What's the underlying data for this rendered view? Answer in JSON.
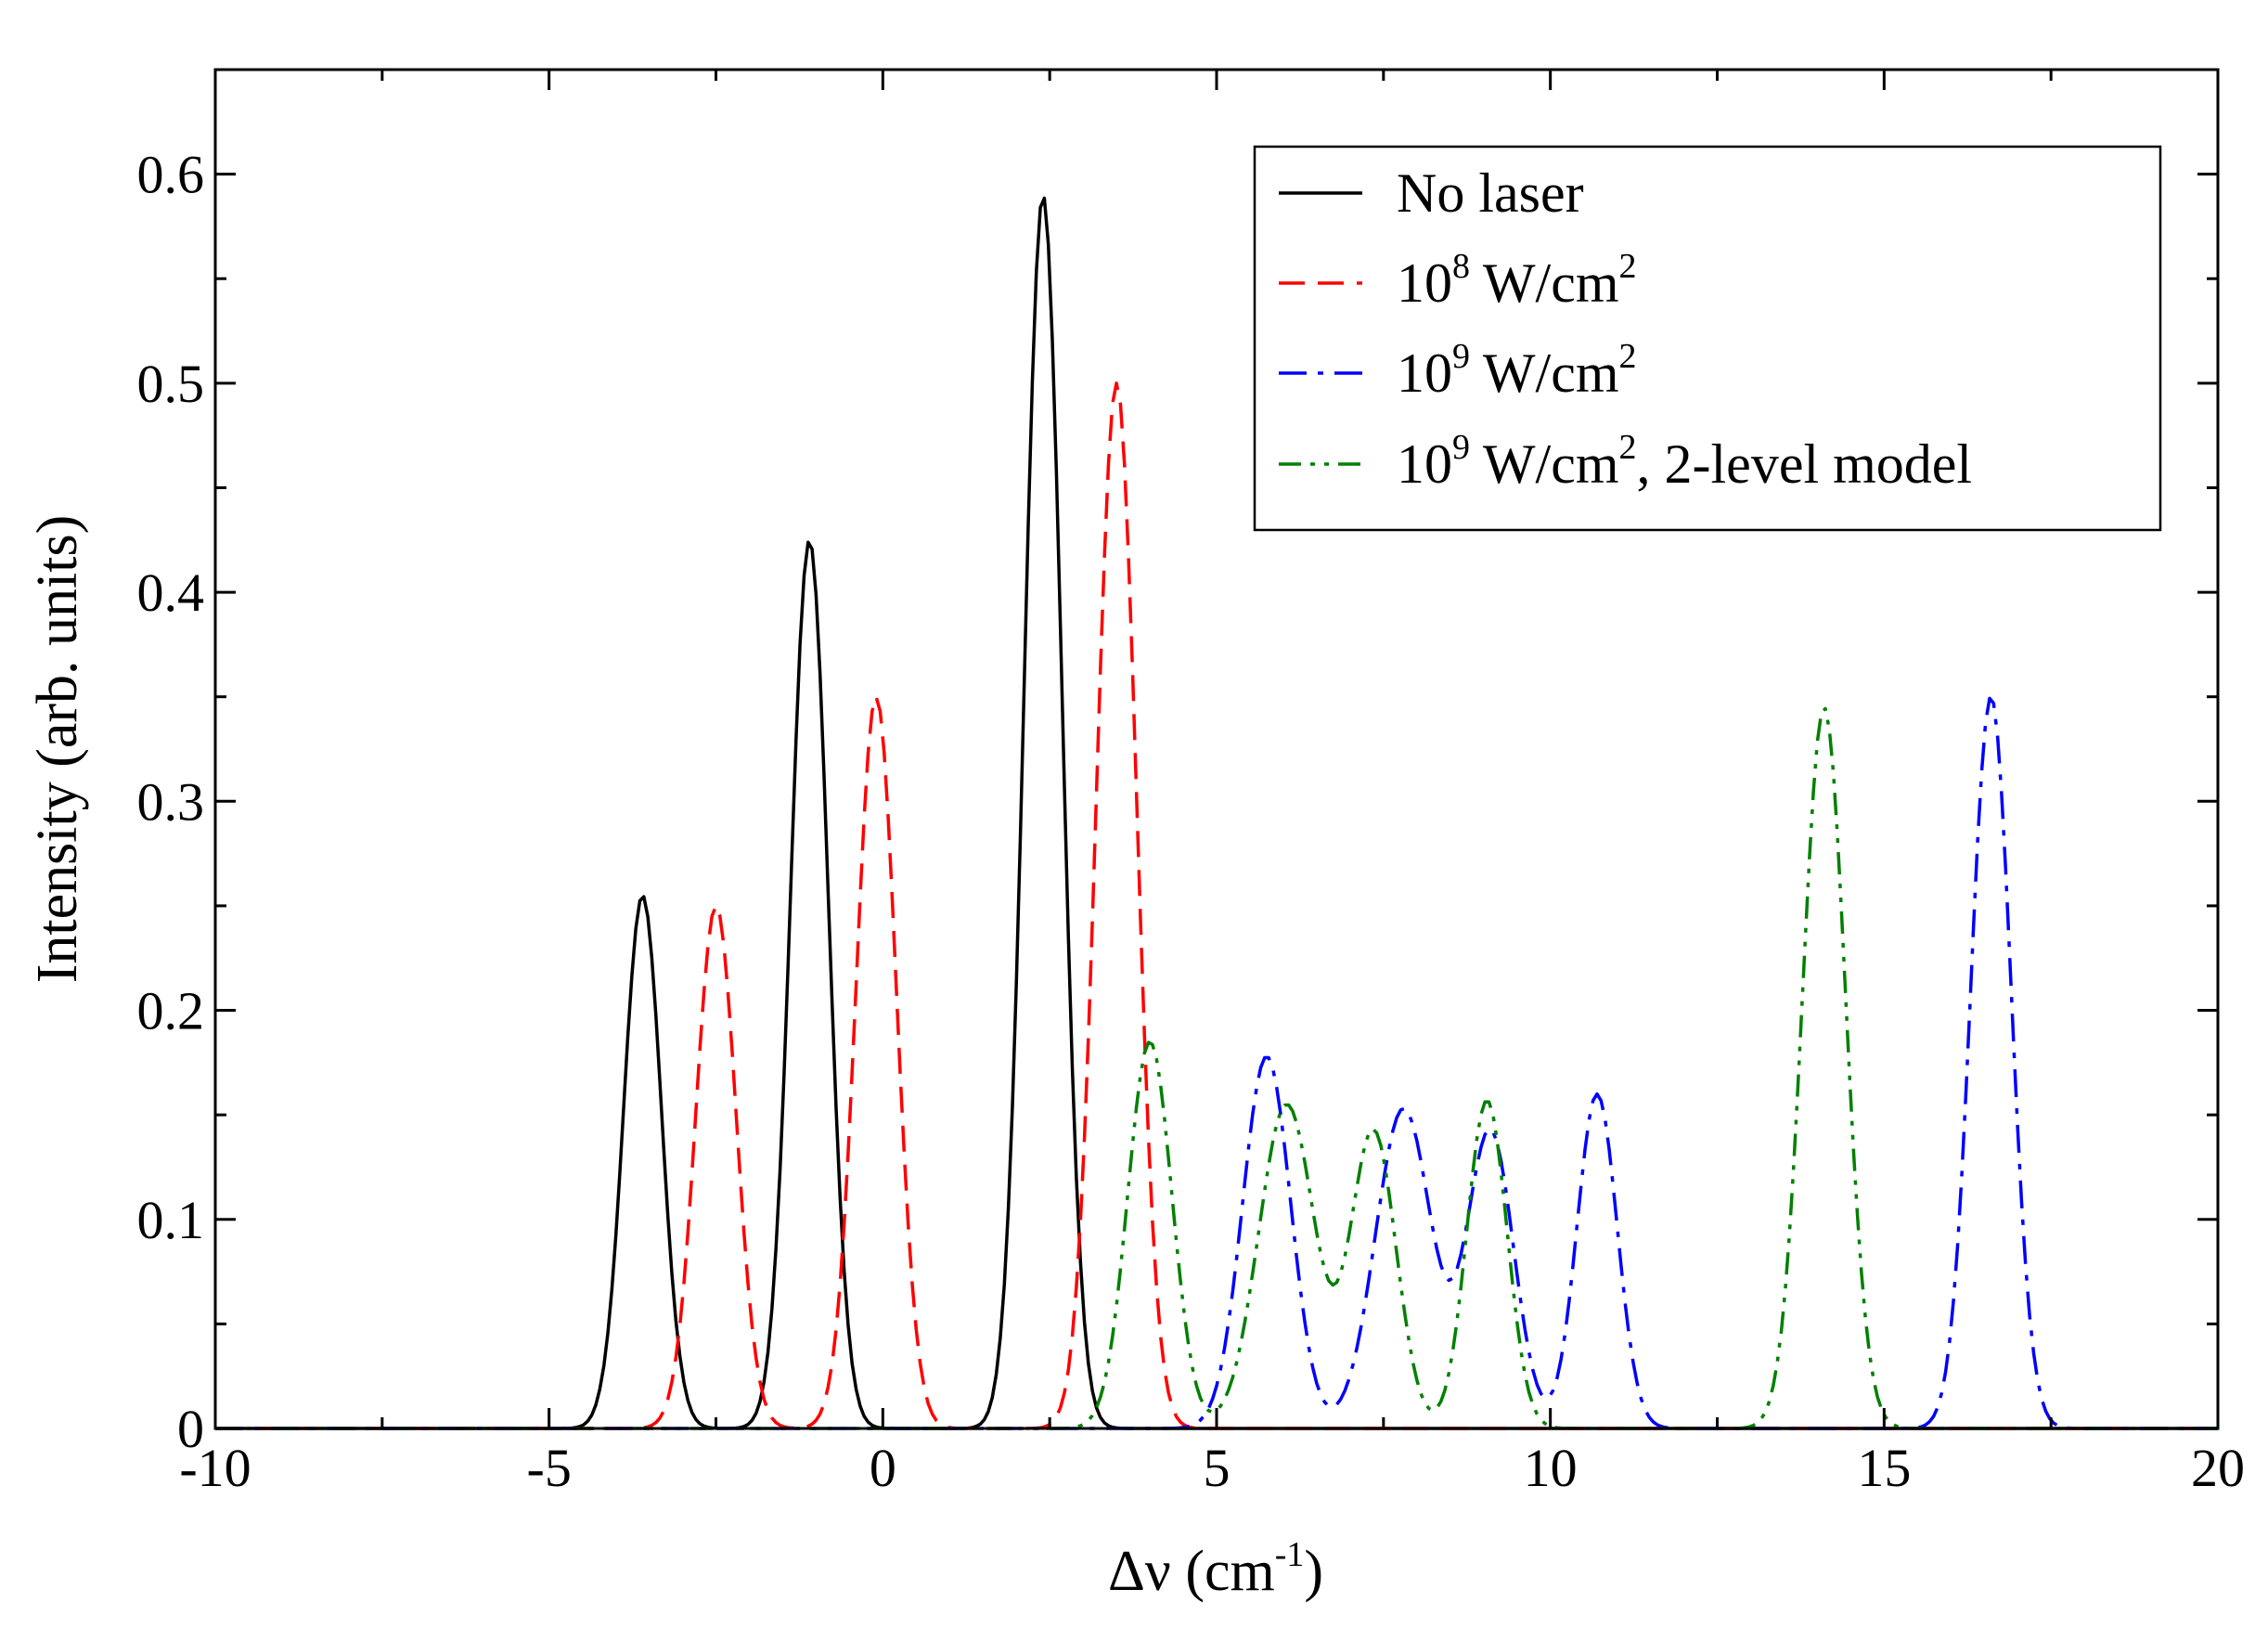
{
  "chart_data": {
    "type": "line",
    "title": "",
    "xlabel": {
      "main": "Δν (cm",
      "sup": "-1",
      "tail": ")"
    },
    "ylabel": "Intensity (arb. units)",
    "xlim": [
      -10,
      20
    ],
    "ylim": [
      0,
      0.65
    ],
    "xticks": [
      -10,
      -5,
      0,
      5,
      10,
      15,
      20
    ],
    "yticks": [
      0,
      0.1,
      0.2,
      0.3,
      0.4,
      0.5,
      0.6
    ],
    "xtick_labels": [
      "-10",
      "-5",
      "0",
      "5",
      "10",
      "15",
      "20"
    ],
    "ytick_labels": [
      "0",
      "0.1",
      "0.2",
      "0.3",
      "0.4",
      "0.5",
      "0.6"
    ],
    "grid": false,
    "legend_position": "top-right",
    "series": [
      {
        "name": "No laser",
        "legend": {
          "base": "No laser",
          "sup": "",
          "tail": ""
        },
        "color": "#000000",
        "style": "solid",
        "peaks": [
          {
            "center": -3.6,
            "height": 0.255,
            "width": 0.28
          },
          {
            "center": -1.1,
            "height": 0.425,
            "width": 0.28
          },
          {
            "center": 2.4,
            "height": 0.59,
            "width": 0.28
          }
        ]
      },
      {
        "name": "10^8 W/cm^2",
        "legend": {
          "base": "10",
          "sup": "8",
          "tail": " W/cm",
          "sup2": "2",
          "tail2": ""
        },
        "color": "#ff0000",
        "style": "dashed",
        "peaks": [
          {
            "center": -2.5,
            "height": 0.25,
            "width": 0.3
          },
          {
            "center": -0.1,
            "height": 0.35,
            "width": 0.3
          },
          {
            "center": 3.5,
            "height": 0.5,
            "width": 0.3
          }
        ]
      },
      {
        "name": "10^9 W/cm^2",
        "legend": {
          "base": "10",
          "sup": "9",
          "tail": " W/cm",
          "sup2": "2",
          "tail2": ""
        },
        "color": "#0000ff",
        "style": "dashdot",
        "peaks": [
          {
            "center": 5.75,
            "height": 0.178,
            "width": 0.36
          },
          {
            "center": 7.8,
            "height": 0.153,
            "width": 0.42
          },
          {
            "center": 9.1,
            "height": 0.142,
            "width": 0.35
          },
          {
            "center": 10.7,
            "height": 0.16,
            "width": 0.3
          },
          {
            "center": 16.6,
            "height": 0.35,
            "width": 0.3
          }
        ]
      },
      {
        "name": "10^9 W/cm^2, 2-level model",
        "legend": {
          "base": "10",
          "sup": "9",
          "tail": " W/cm",
          "sup2": "2",
          "tail2": ", 2-level model"
        },
        "color": "#008000",
        "style": "dashdotdot",
        "peaks": [
          {
            "center": 4.0,
            "height": 0.185,
            "width": 0.33
          },
          {
            "center": 6.05,
            "height": 0.155,
            "width": 0.42
          },
          {
            "center": 7.35,
            "height": 0.142,
            "width": 0.34
          },
          {
            "center": 9.05,
            "height": 0.157,
            "width": 0.3
          },
          {
            "center": 14.1,
            "height": 0.345,
            "width": 0.32
          }
        ]
      }
    ]
  }
}
